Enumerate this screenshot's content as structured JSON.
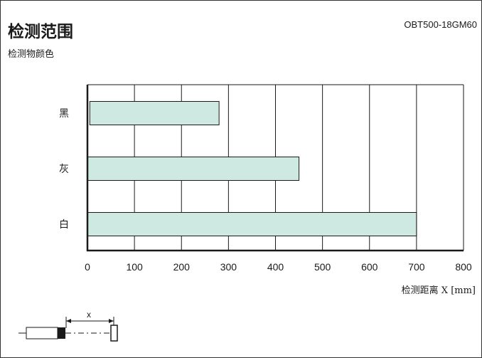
{
  "header": {
    "title": "检测范围",
    "model": "OBT500-18GM60",
    "subtitle": "检测物颜色"
  },
  "diagram": {
    "dimension_label": "x"
  },
  "colors": {
    "bar_fill": "#cde9e2",
    "stroke": "#1a1a1a"
  },
  "chart_data": {
    "type": "bar",
    "orientation": "horizontal",
    "categories": [
      "黑",
      "灰",
      "白"
    ],
    "series": [
      {
        "start": [
          5,
          0,
          0
        ],
        "values": [
          280,
          450,
          700
        ]
      }
    ],
    "xlabel": "检测距离 X [mm]",
    "xlim": [
      0,
      800
    ],
    "xticks": [
      0,
      100,
      200,
      300,
      400,
      500,
      600,
      700,
      800
    ],
    "grid": "vertical"
  }
}
